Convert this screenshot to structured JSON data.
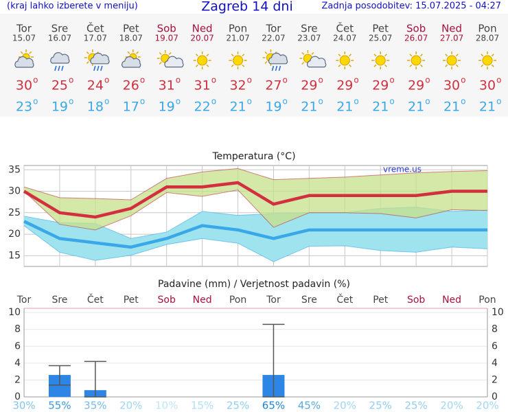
{
  "header": {
    "note": "(kraj lahko izberete v meniju)",
    "title": "Zagreb 14 dni",
    "updated": "Zadnja posodobitev: 15.07.2025 - 04:27"
  },
  "forecast": {
    "degree_mark": "o",
    "max_color": "#d3303f",
    "min_color": "#3aa8e8",
    "days": [
      {
        "name": "Tor",
        "date": "15.07",
        "max": 30,
        "min": 23,
        "color": "#444444"
      },
      {
        "name": "Sre",
        "date": "16.07",
        "max": 25,
        "min": 19,
        "color": "#444444"
      },
      {
        "name": "Čet",
        "date": "17.07",
        "max": 24,
        "min": 18,
        "color": "#444444"
      },
      {
        "name": "Pet",
        "date": "18.07",
        "max": 26,
        "min": 17,
        "color": "#444444"
      },
      {
        "name": "Sob",
        "date": "19.07",
        "max": 31,
        "min": 19,
        "color": "#a8103c"
      },
      {
        "name": "Ned",
        "date": "20.07",
        "max": 31,
        "min": 22,
        "color": "#a8103c"
      },
      {
        "name": "Pon",
        "date": "21.07",
        "max": 32,
        "min": 21,
        "color": "#444444"
      },
      {
        "name": "Tor",
        "date": "22.07",
        "max": 27,
        "min": 19,
        "color": "#444444"
      },
      {
        "name": "Sre",
        "date": "23.07",
        "max": 29,
        "min": 21,
        "color": "#444444"
      },
      {
        "name": "Čet",
        "date": "24.07",
        "max": 29,
        "min": 21,
        "color": "#444444"
      },
      {
        "name": "Pet",
        "date": "25.07",
        "max": 29,
        "min": 21,
        "color": "#444444"
      },
      {
        "name": "Sob",
        "date": "26.07",
        "max": 29,
        "min": 21,
        "color": "#a8103c"
      },
      {
        "name": "Ned",
        "date": "27.07",
        "max": 30,
        "min": 21,
        "color": "#a8103c"
      },
      {
        "name": "Pon",
        "date": "28.07",
        "max": 30,
        "min": 21,
        "color": "#444444"
      }
    ]
  },
  "chart_data": [
    {
      "type": "line",
      "title": "Temperatura (°C)",
      "annotation": "vreme.us",
      "ylim": [
        12.5,
        36
      ],
      "yticks": [
        15,
        20,
        25,
        30,
        35
      ],
      "grid": true,
      "bands": [
        {
          "color": "#9fe3ef",
          "edge_color": "#3aa8e8",
          "upper": [
            24.2,
            22.7,
            22.5,
            19,
            20.5,
            25.3,
            24.4,
            24.8,
            25,
            25,
            26,
            26.3,
            25.3,
            25.7
          ],
          "lower": [
            22,
            15.8,
            13.9,
            15.1,
            17.6,
            19,
            17.9,
            13.6,
            17.2,
            17.3,
            16.2,
            15.8,
            17,
            16.6
          ]
        },
        {
          "color": "#c6e08a",
          "edge_color": "#c03040",
          "upper": [
            31,
            28.5,
            28.3,
            28,
            33,
            34.5,
            35.3,
            32.7,
            33,
            33.3,
            33.8,
            34.3,
            34.6,
            34.8
          ],
          "lower": [
            30,
            22.3,
            21,
            24.3,
            29.7,
            28.8,
            30.3,
            21.6,
            25,
            25,
            24.8,
            23.8,
            25.7,
            25.5
          ]
        }
      ],
      "series": [
        {
          "color": "#d3303f",
          "values": [
            30,
            25,
            24,
            26,
            31,
            31,
            32,
            27,
            29,
            29,
            29,
            29,
            30,
            30
          ]
        },
        {
          "color": "#3aa8e8",
          "values": [
            23,
            19,
            18,
            17,
            19,
            22,
            21,
            19,
            21,
            21,
            21,
            21,
            21,
            21
          ]
        }
      ]
    },
    {
      "type": "bar",
      "title": "Padavine (mm) / Verjetnost padavin (%)",
      "categories": [
        "Tor",
        "Sre",
        "Čet",
        "Pet",
        "Sob",
        "Ned",
        "Pon",
        "Tor",
        "Sre",
        "Čet",
        "Pet",
        "Sob",
        "Ned",
        "Pon"
      ],
      "values": [
        0,
        2.6,
        0.8,
        0,
        0,
        0,
        0,
        2.6,
        0,
        0,
        0,
        0,
        0,
        0
      ],
      "color": "#2d86e6",
      "error_low": [
        null,
        1.4,
        0,
        null,
        null,
        null,
        null,
        0,
        null,
        null,
        null,
        null,
        null,
        null
      ],
      "error_high": [
        null,
        3.7,
        4.2,
        null,
        null,
        null,
        null,
        8.6,
        null,
        null,
        null,
        null,
        null,
        null
      ],
      "probability": [
        30,
        55,
        35,
        20,
        10,
        15,
        25,
        65,
        45,
        20,
        25,
        25,
        20,
        20
      ],
      "probability_labels": [
        "30%",
        "55%",
        "35%",
        "20%",
        "10%",
        "15%",
        "25%",
        "65%",
        "45%",
        "20%",
        "25%",
        "25%",
        "20%",
        "20%"
      ],
      "ylim": [
        0,
        10.5
      ],
      "yticks": [
        0,
        2,
        4,
        6,
        8,
        10
      ],
      "grid": true
    }
  ]
}
